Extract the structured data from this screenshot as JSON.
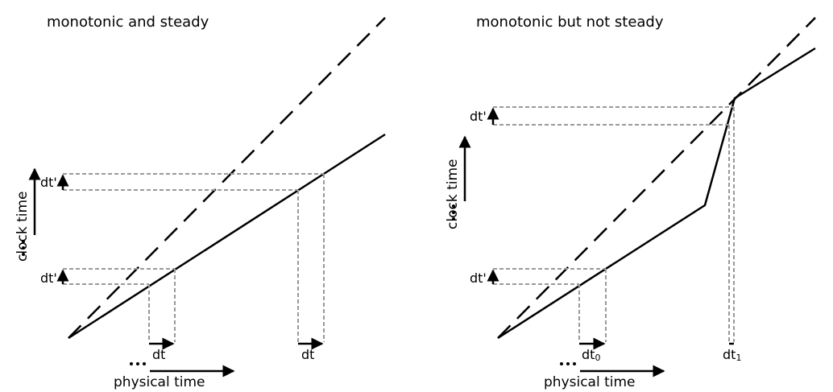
{
  "left_panel": {
    "title": "monotonic and steady",
    "x_axis_label": "physical time",
    "y_axis_label": "clock time",
    "interval_labels": [
      "dt",
      "dt"
    ],
    "clock_interval_labels": [
      "dt'",
      "dt'"
    ]
  },
  "right_panel": {
    "title": "monotonic but not steady",
    "x_axis_label": "physical time",
    "y_axis_label": "clock time",
    "interval_label_0": "dt",
    "interval_sub_0": "0",
    "interval_label_1": "dt",
    "interval_sub_1": "1",
    "clock_interval_labels": [
      "dt'",
      "dt'"
    ]
  },
  "colors": {
    "line": "#000000",
    "guide": "#999999"
  }
}
